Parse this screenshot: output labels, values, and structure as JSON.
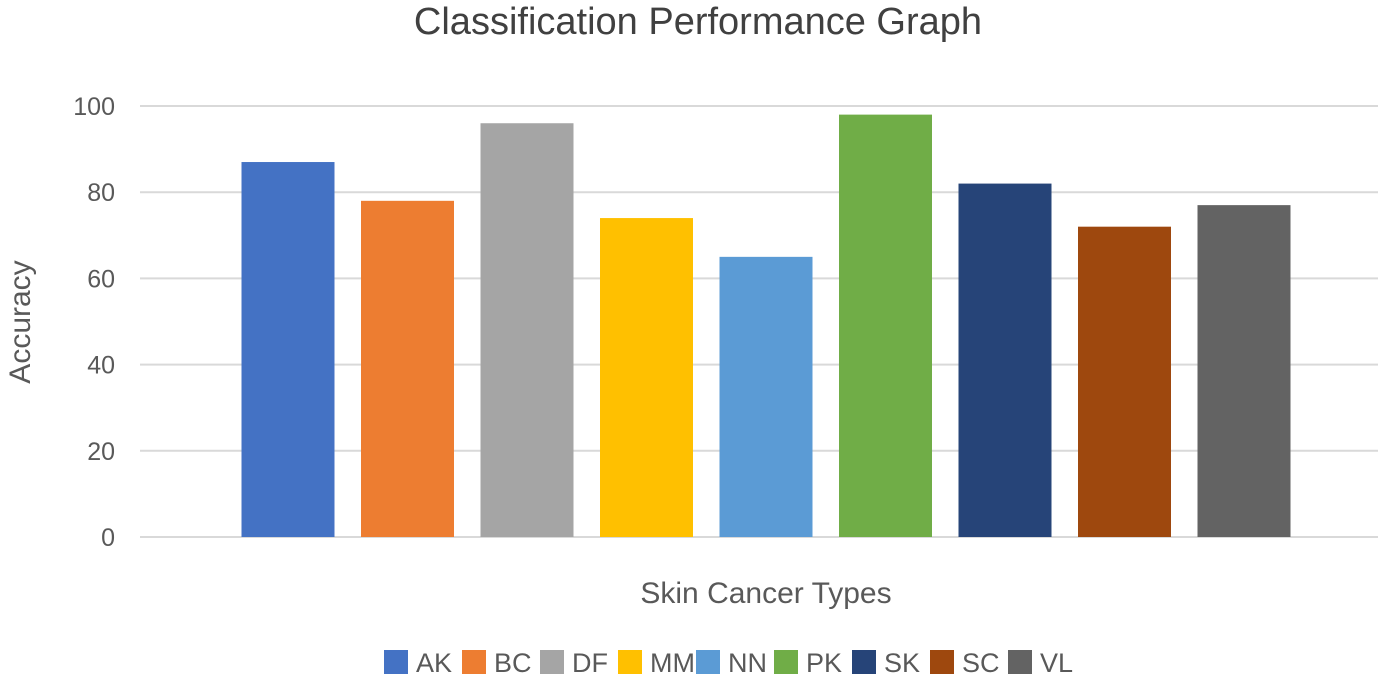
{
  "chart_data": {
    "type": "bar",
    "title": "Classification Performance Graph",
    "xlabel": "Skin Cancer Types",
    "ylabel": "Accuracy",
    "ylim": [
      0,
      100
    ],
    "yticks": [
      0,
      20,
      40,
      60,
      80,
      100
    ],
    "grid": true,
    "legend_position": "bottom",
    "series": [
      {
        "name": "AK",
        "value": 87,
        "color": "#4472c4"
      },
      {
        "name": "BC",
        "value": 78,
        "color": "#ed7d31"
      },
      {
        "name": "DF",
        "value": 96,
        "color": "#a5a5a5"
      },
      {
        "name": "MM",
        "value": 74,
        "color": "#ffc000"
      },
      {
        "name": "NN",
        "value": 65,
        "color": "#5b9bd5"
      },
      {
        "name": "PK",
        "value": 98,
        "color": "#70ad47"
      },
      {
        "name": "SK",
        "value": 82,
        "color": "#264478"
      },
      {
        "name": "SC",
        "value": 72,
        "color": "#9e480e"
      },
      {
        "name": "VL",
        "value": 77,
        "color": "#636363"
      }
    ]
  }
}
